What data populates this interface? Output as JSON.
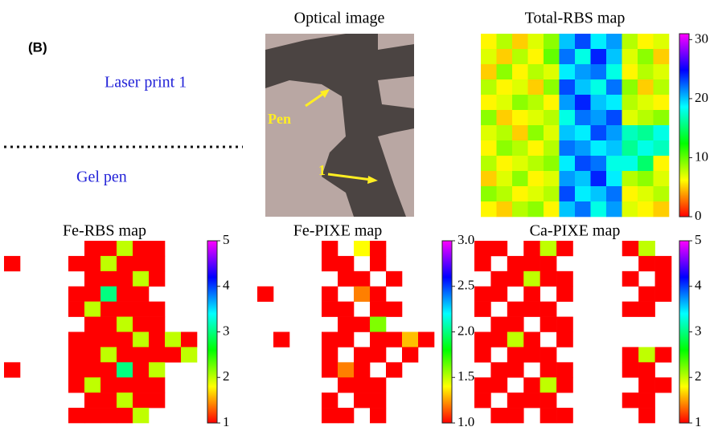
{
  "panel_label": "(B)",
  "legend": {
    "upper": "Laser print 1",
    "lower": "Gel pen"
  },
  "optical": {
    "title": "Optical image",
    "annotations": [
      "Pen",
      "1"
    ]
  },
  "chart_data": [
    {
      "type": "heatmap",
      "title": "Total-RBS map",
      "clim": [
        0,
        31
      ],
      "cticks": [
        0,
        10,
        20,
        30
      ],
      "colormap": [
        "#ff0000",
        "#ffff00",
        "#00ff00",
        "#00ffff",
        "#0000ff",
        "#ff00ff"
      ],
      "z": [
        [
          6,
          8,
          5,
          7,
          9,
          20,
          23,
          19,
          21,
          8,
          6,
          7
        ],
        [
          7,
          5,
          8,
          6,
          10,
          22,
          18,
          24,
          20,
          7,
          9,
          5
        ],
        [
          5,
          9,
          6,
          8,
          7,
          19,
          21,
          22,
          18,
          6,
          8,
          7
        ],
        [
          8,
          6,
          7,
          5,
          9,
          23,
          20,
          18,
          22,
          9,
          5,
          8
        ],
        [
          6,
          7,
          9,
          8,
          6,
          21,
          24,
          20,
          19,
          8,
          7,
          6
        ],
        [
          9,
          5,
          6,
          7,
          8,
          18,
          22,
          21,
          23,
          7,
          8,
          9
        ],
        [
          7,
          8,
          5,
          9,
          7,
          20,
          19,
          23,
          21,
          17,
          16,
          18
        ],
        [
          6,
          9,
          8,
          6,
          8,
          22,
          21,
          19,
          20,
          16,
          18,
          17
        ],
        [
          8,
          6,
          7,
          8,
          9,
          19,
          23,
          22,
          18,
          18,
          15,
          6
        ],
        [
          5,
          7,
          9,
          6,
          7,
          21,
          20,
          24,
          19,
          8,
          9,
          7
        ],
        [
          9,
          8,
          6,
          7,
          8,
          23,
          19,
          20,
          22,
          6,
          7,
          8
        ],
        [
          6,
          5,
          8,
          9,
          6,
          20,
          22,
          18,
          21,
          7,
          6,
          5
        ]
      ]
    },
    {
      "type": "heatmap",
      "title": "Fe-RBS map",
      "clim": [
        1,
        5
      ],
      "cticks": [
        1,
        2,
        3,
        4,
        5
      ],
      "colormap": [
        "#ff0000",
        "#ffff00",
        "#00ff00",
        "#00ffff",
        "#0000ff",
        "#ff00ff"
      ],
      "z": [
        [
          null,
          null,
          null,
          null,
          null,
          1,
          1,
          2,
          1,
          1,
          null,
          null
        ],
        [
          1,
          null,
          null,
          null,
          1,
          1,
          2,
          1,
          1,
          1,
          null,
          null
        ],
        [
          null,
          null,
          null,
          null,
          null,
          1,
          1,
          1,
          2,
          1,
          null,
          null
        ],
        [
          null,
          null,
          null,
          null,
          1,
          1,
          3,
          1,
          1,
          null,
          null,
          null
        ],
        [
          null,
          null,
          null,
          null,
          1,
          2,
          1,
          1,
          1,
          1,
          null,
          null
        ],
        [
          null,
          null,
          null,
          null,
          null,
          1,
          1,
          2,
          1,
          1,
          null,
          null
        ],
        [
          null,
          null,
          null,
          null,
          1,
          1,
          1,
          1,
          2,
          1,
          2,
          1
        ],
        [
          null,
          null,
          null,
          null,
          1,
          1,
          2,
          1,
          1,
          1,
          1,
          2
        ],
        [
          1,
          null,
          null,
          null,
          1,
          1,
          1,
          3,
          1,
          2,
          null,
          null
        ],
        [
          null,
          null,
          null,
          null,
          1,
          2,
          1,
          1,
          1,
          1,
          null,
          null
        ],
        [
          null,
          null,
          null,
          null,
          null,
          1,
          1,
          2,
          1,
          1,
          null,
          null
        ],
        [
          null,
          null,
          null,
          null,
          1,
          1,
          1,
          1,
          2,
          null,
          null,
          null
        ]
      ]
    },
    {
      "type": "heatmap",
      "title": "Fe-PIXE map",
      "clim": [
        1,
        3
      ],
      "cticks": [
        {
          "value": 1,
          "label": "1.0"
        },
        {
          "value": 1.5,
          "label": "1.5"
        },
        {
          "value": 2,
          "label": "2.0"
        },
        {
          "value": 2.5,
          "label": "2.5"
        },
        {
          "value": 3,
          "label": "3.0"
        }
      ],
      "colormap": [
        "#ff0000",
        "#ffff00",
        "#00ff00",
        "#00ffff",
        "#0000ff",
        "#ff00ff"
      ],
      "z": [
        [
          null,
          null,
          null,
          null,
          null,
          1,
          null,
          1.4,
          1,
          null,
          null,
          null
        ],
        [
          null,
          null,
          null,
          null,
          null,
          1,
          1,
          null,
          1,
          null,
          null,
          null
        ],
        [
          null,
          null,
          null,
          null,
          null,
          null,
          1,
          1,
          null,
          1,
          null,
          null
        ],
        [
          null,
          1,
          null,
          null,
          null,
          1,
          null,
          1.2,
          1,
          null,
          null,
          null
        ],
        [
          null,
          null,
          null,
          null,
          null,
          1,
          1,
          null,
          1,
          1,
          null,
          null
        ],
        [
          null,
          null,
          null,
          null,
          null,
          null,
          1,
          1,
          1.6,
          null,
          null,
          null
        ],
        [
          null,
          null,
          1,
          null,
          null,
          1,
          1,
          null,
          1,
          1,
          1.3,
          1
        ],
        [
          null,
          null,
          null,
          null,
          null,
          1,
          null,
          1,
          1,
          null,
          1,
          null
        ],
        [
          null,
          null,
          null,
          null,
          null,
          1,
          1.2,
          1,
          null,
          1,
          null,
          null
        ],
        [
          null,
          null,
          null,
          null,
          null,
          null,
          1,
          1,
          1,
          null,
          null,
          null
        ],
        [
          null,
          null,
          null,
          null,
          null,
          1,
          null,
          1,
          1,
          null,
          null,
          null
        ],
        [
          null,
          null,
          null,
          null,
          null,
          1,
          1,
          null,
          1,
          null,
          null,
          null
        ]
      ]
    },
    {
      "type": "heatmap",
      "title": "Ca-PIXE map",
      "clim": [
        1,
        5
      ],
      "cticks": [
        1,
        2,
        3,
        4,
        5
      ],
      "colormap": [
        "#ff0000",
        "#ffff00",
        "#00ff00",
        "#00ffff",
        "#0000ff",
        "#ff00ff"
      ],
      "z": [
        [
          1,
          1,
          null,
          1,
          2,
          1,
          null,
          null,
          null,
          1,
          2,
          null
        ],
        [
          1,
          null,
          1,
          1,
          1,
          null,
          null,
          null,
          null,
          null,
          1,
          1
        ],
        [
          null,
          1,
          1,
          2,
          1,
          1,
          null,
          null,
          null,
          1,
          null,
          1
        ],
        [
          1,
          1,
          null,
          1,
          null,
          1,
          null,
          null,
          null,
          null,
          1,
          1
        ],
        [
          1,
          null,
          1,
          1,
          1,
          null,
          null,
          null,
          null,
          1,
          1,
          null
        ],
        [
          null,
          1,
          1,
          null,
          1,
          1,
          null,
          null,
          null,
          null,
          null,
          null
        ],
        [
          1,
          1,
          2,
          1,
          null,
          1,
          null,
          null,
          null,
          null,
          null,
          null
        ],
        [
          1,
          null,
          1,
          1,
          1,
          null,
          null,
          null,
          null,
          1,
          2,
          1
        ],
        [
          null,
          1,
          1,
          null,
          1,
          1,
          null,
          null,
          null,
          1,
          1,
          null
        ],
        [
          1,
          1,
          null,
          1,
          2,
          1,
          null,
          null,
          null,
          null,
          1,
          1
        ],
        [
          1,
          null,
          1,
          1,
          1,
          null,
          null,
          null,
          null,
          1,
          1,
          null
        ],
        [
          null,
          1,
          1,
          null,
          1,
          1,
          null,
          null,
          null,
          null,
          1,
          null
        ]
      ]
    }
  ]
}
